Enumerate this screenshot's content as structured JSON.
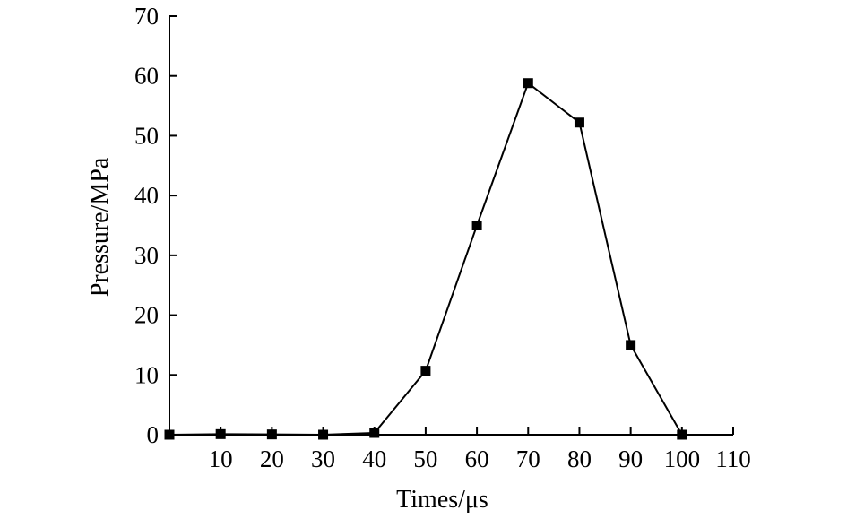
{
  "chart_data": {
    "type": "line",
    "title": "",
    "xlabel": "Times/μs",
    "ylabel": "Pressure/MPa",
    "xlim": [
      0,
      110
    ],
    "ylim": [
      0,
      70
    ],
    "x_ticks": [
      10,
      20,
      30,
      40,
      50,
      60,
      70,
      80,
      90,
      100,
      110
    ],
    "x_tick_labels": [
      "10",
      "20",
      "30",
      "40",
      "50",
      "60",
      "70",
      "80",
      "90",
      "100",
      "110"
    ],
    "y_ticks": [
      0,
      10,
      20,
      30,
      40,
      50,
      60,
      70
    ],
    "y_tick_labels": [
      "0",
      "10",
      "20",
      "30",
      "40",
      "50",
      "60",
      "70"
    ],
    "grid": false,
    "legend": false,
    "marker": "square",
    "color": "#000000",
    "series": [
      {
        "x": [
          0,
          10,
          20,
          30,
          40,
          50,
          60,
          70,
          80,
          90,
          100
        ],
        "y": [
          0,
          0.1,
          0.05,
          0,
          0.3,
          10.7,
          35,
          58.8,
          52.2,
          15,
          0
        ]
      }
    ]
  }
}
